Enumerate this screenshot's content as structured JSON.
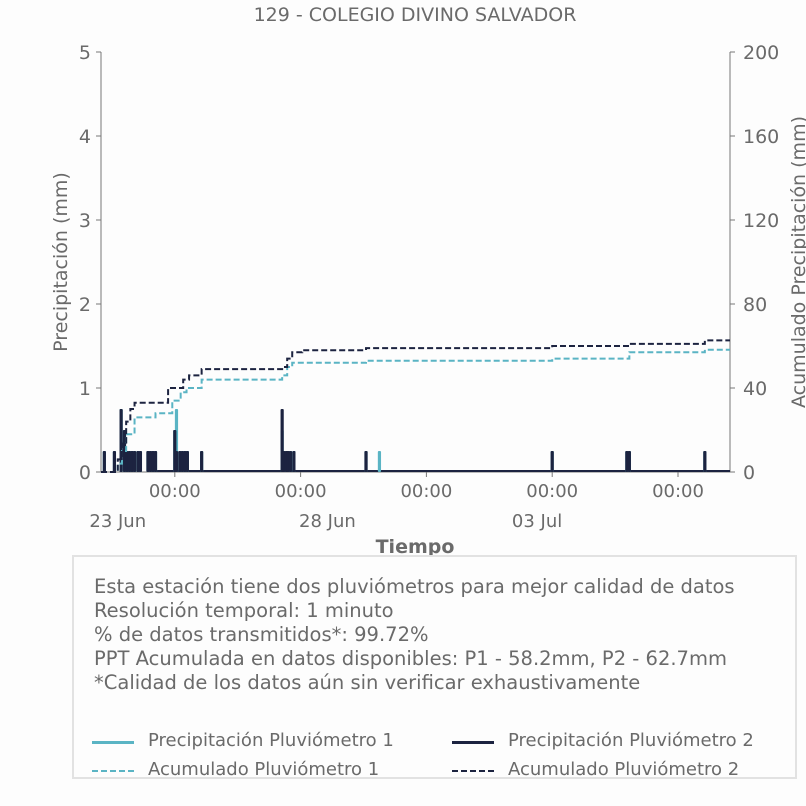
{
  "chart_data": {
    "type": "bar",
    "title": "129 - COLEGIO DIVINO SALVADOR",
    "xlabel": "Tiempo",
    "ylabel": "Precipitación (mm)",
    "ylabel_right": "Acumulado Precipitación (mm)",
    "ylim": [
      0,
      5
    ],
    "ylim_right": [
      0,
      200
    ],
    "yticks": [
      "0",
      "1",
      "2",
      "3",
      "4",
      "5"
    ],
    "yticks_right": [
      "0",
      "40",
      "80",
      "120",
      "160",
      "200"
    ],
    "x_range_days": [
      22.8,
      30.3
    ],
    "x_tick_labels": [
      {
        "day": 23.68,
        "label": "00:00"
      },
      {
        "day": 25.18,
        "label": "00:00"
      },
      {
        "day": 26.68,
        "label": "00:00"
      },
      {
        "day": 28.18,
        "label": "00:00"
      },
      {
        "day": 29.68,
        "label": "00:00"
      }
    ],
    "x_date_labels": [
      {
        "day": 23.0,
        "label": "23 Jun"
      },
      {
        "day": 25.5,
        "label": "28 Jun"
      },
      {
        "day": 28.0,
        "label": "03 Jul"
      }
    ],
    "grid": false,
    "series": [
      {
        "name": "Precipitación Pluviómetro 1",
        "type": "bar",
        "axis": "left",
        "color": "#5ab4c4",
        "x": [
          22.84,
          22.96,
          23.04,
          23.08,
          23.11,
          23.14,
          23.17,
          23.2,
          23.24,
          23.27,
          23.36,
          23.39,
          23.42,
          23.45,
          23.68,
          23.7,
          23.74,
          23.77,
          23.8,
          23.83,
          24.0,
          24.96,
          24.98,
          25.01,
          25.03,
          25.06,
          25.1,
          25.96,
          26.12,
          28.18,
          29.07,
          29.1,
          30.0
        ],
        "values": [
          0.25,
          0.25,
          0.75,
          0.5,
          0.25,
          0.25,
          0.25,
          0.25,
          0.25,
          0.25,
          0.25,
          0.25,
          0.25,
          0.25,
          0.5,
          0.75,
          0.25,
          0.25,
          0.25,
          0.25,
          0.25,
          0.5,
          0.25,
          0.25,
          0.25,
          0.25,
          0.25,
          0.25,
          0.25,
          0.25,
          0.25,
          0.25,
          0.25
        ]
      },
      {
        "name": "Precipitación Pluviómetro 2",
        "type": "bar",
        "axis": "left",
        "color": "#1c2340",
        "x": [
          22.84,
          22.96,
          23.04,
          23.08,
          23.11,
          23.14,
          23.17,
          23.2,
          23.24,
          23.27,
          23.36,
          23.39,
          23.42,
          23.45,
          23.68,
          23.7,
          23.74,
          23.77,
          23.8,
          23.83,
          24.0,
          24.96,
          24.98,
          25.01,
          25.03,
          25.06,
          25.1,
          25.96,
          28.18,
          29.07,
          29.1,
          30.0
        ],
        "values": [
          0.25,
          0.25,
          0.75,
          0.5,
          0.25,
          0.25,
          0.25,
          0.25,
          0.25,
          0.25,
          0.25,
          0.25,
          0.25,
          0.25,
          0.5,
          0.25,
          0.25,
          0.25,
          0.25,
          0.25,
          0.25,
          0.75,
          0.25,
          0.25,
          0.25,
          0.25,
          0.25,
          0.25,
          0.25,
          0.25,
          0.25,
          0.25
        ]
      },
      {
        "name": "Acumulado Pluviómetro 1",
        "type": "step",
        "axis": "right",
        "color": "#5ab4c4",
        "dashed": true,
        "x": [
          22.8,
          23.0,
          23.05,
          23.1,
          23.2,
          23.45,
          23.65,
          23.75,
          23.82,
          24.0,
          24.96,
          25.02,
          25.08,
          25.2,
          25.96,
          28.18,
          29.1,
          30.0,
          30.3
        ],
        "values": [
          0,
          4,
          10,
          18,
          26,
          28,
          34,
          38,
          40,
          44,
          46,
          50,
          52,
          52,
          53,
          54,
          57,
          58.2,
          58.2
        ]
      },
      {
        "name": "Acumulado Pluviómetro 2",
        "type": "step",
        "axis": "right",
        "color": "#1c2340",
        "dashed": true,
        "x": [
          22.8,
          23.0,
          23.05,
          23.1,
          23.15,
          23.2,
          23.45,
          23.6,
          23.78,
          23.85,
          24.0,
          24.96,
          25.02,
          25.08,
          25.2,
          25.96,
          28.18,
          29.1,
          30.0,
          30.3
        ],
        "values": [
          0,
          6,
          14,
          24,
          30,
          33,
          33,
          40,
          44,
          46,
          49,
          50,
          54,
          57,
          58,
          59,
          60,
          61,
          62.7,
          62.7
        ]
      }
    ]
  },
  "info": {
    "lines": [
      "Esta estación tiene dos pluviómetros para mejor calidad de datos",
      "Resolución temporal: 1 minuto",
      "% de datos transmitidos*: 99.72%",
      "PPT Acumulada en datos disponibles: P1 - 58.2mm, P2 - 62.7mm",
      "*Calidad de los datos aún sin verificar exhaustivamente"
    ]
  },
  "legend": [
    {
      "label": "Precipitación Pluviómetro 1",
      "color": "#5ab4c4",
      "style": "solid"
    },
    {
      "label": "Precipitación Pluviómetro 2",
      "color": "#1c2340",
      "style": "solid"
    },
    {
      "label": "Acumulado Pluviómetro 1",
      "color": "#5ab4c4",
      "style": "dashed"
    },
    {
      "label": "Acumulado Pluviómetro 2",
      "color": "#1c2340",
      "style": "dashed"
    }
  ]
}
